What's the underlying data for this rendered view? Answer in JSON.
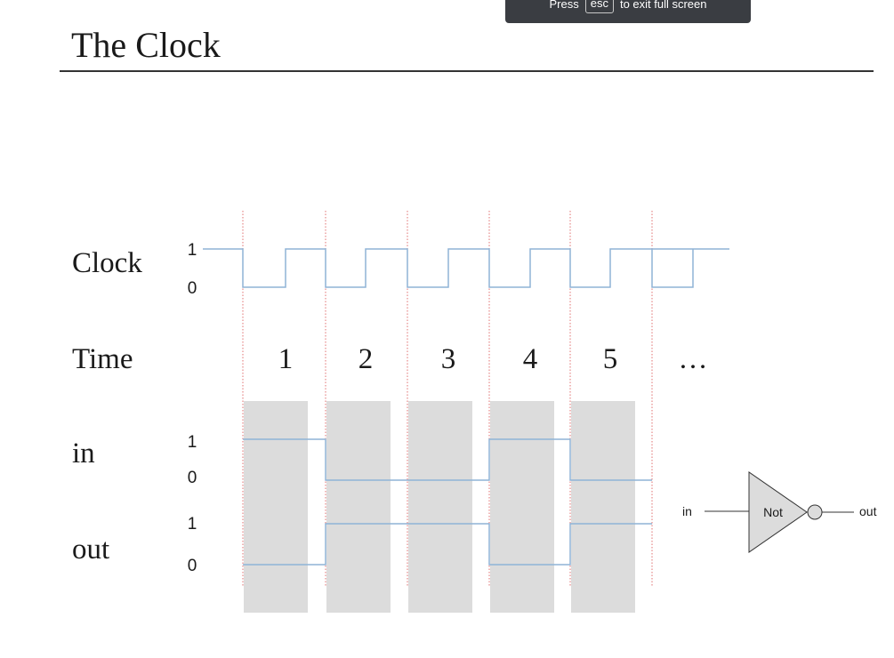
{
  "banner": {
    "press": "Press",
    "key": "esc",
    "rest": "to exit full screen"
  },
  "slide": {
    "title": "The Clock"
  },
  "rows": {
    "clock": "Clock",
    "time": "Time",
    "in": "in",
    "out": "out"
  },
  "levels": {
    "high": "1",
    "low": "0"
  },
  "time_steps": [
    "1",
    "2",
    "3",
    "4",
    "5",
    "…"
  ],
  "signals": {
    "clock": [
      1,
      0,
      1,
      0,
      1,
      0,
      1,
      0,
      1,
      0,
      1,
      0,
      1,
      0,
      1
    ],
    "in": [
      1,
      0,
      0,
      1,
      0
    ],
    "out": [
      0,
      1,
      1,
      0,
      1
    ]
  },
  "gate": {
    "name": "Not",
    "input": "in",
    "output": "out"
  },
  "colors": {
    "signal": "#8fb4d6",
    "divider": "#e07070",
    "shade": "#dcdcdc"
  }
}
